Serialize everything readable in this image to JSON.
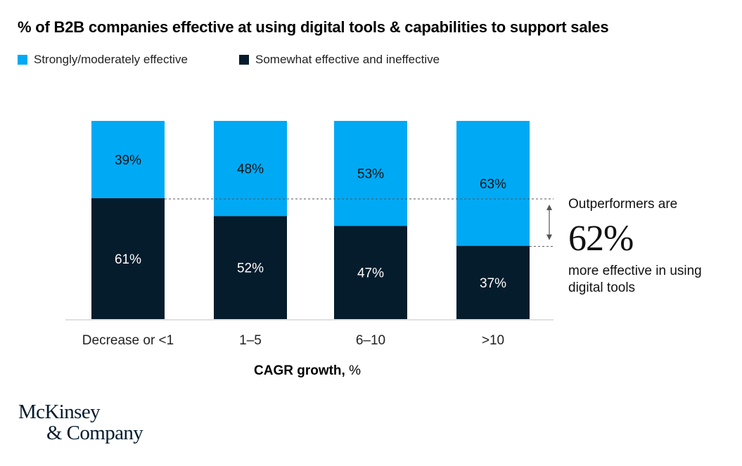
{
  "colors": {
    "effective": "#00A9F4",
    "ineffective": "#051C2C",
    "baseline": "#E0E0E0",
    "dashed": "#555555",
    "arrow": "#777777"
  },
  "chart_data": {
    "type": "bar",
    "stacked": true,
    "orientation": "vertical",
    "title": "% of B2B companies effective at using digital tools & capabilities to support sales",
    "xlabel": "CAGR growth, %",
    "xlabel_bold": "CAGR growth,",
    "xlabel_regular": " %",
    "ylabel": "",
    "ylim": [
      0,
      100
    ],
    "grid": false,
    "legend_position": "top-left",
    "categories": [
      "Decrease or <1",
      "1–5",
      "6–10",
      ">10"
    ],
    "series": [
      {
        "name": "Somewhat effective and ineffective",
        "position": "bottom",
        "values": [
          61,
          52,
          47,
          37
        ],
        "labels": [
          "61%",
          "52%",
          "47%",
          "37%"
        ]
      },
      {
        "name": "Strongly/moderately effective",
        "position": "top",
        "values": [
          39,
          48,
          53,
          63
        ],
        "labels": [
          "39%",
          "48%",
          "53%",
          "63%"
        ]
      }
    ],
    "annotation": {
      "reference_lines": [
        "top of 'Somewhat effective and ineffective' in 'Decrease or <1'",
        "top of 'Somewhat effective and ineffective' in '>10'"
      ],
      "lead": "Outperformers are",
      "value": "62%",
      "tail_line1": "more effective in using",
      "tail_line2": "digital tools"
    }
  },
  "legend": [
    {
      "label": "Strongly/moderately effective",
      "color": "#00A9F4"
    },
    {
      "label": "Somewhat effective and ineffective",
      "color": "#051C2C"
    }
  ],
  "logo": {
    "line1": "McKinsey",
    "line2": "& Company"
  }
}
